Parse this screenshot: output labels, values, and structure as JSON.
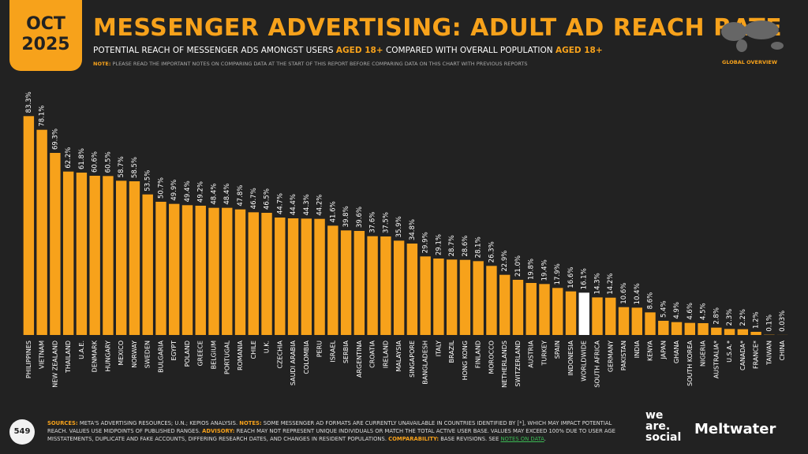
{
  "header": {
    "month": "OCT",
    "year": "2025",
    "title": "MESSENGER ADVERTISING: ADULT AD REACH RATE",
    "subtitle": [
      "POTENTIAL REACH OF MESSENGER ADS AMONGST USERS ",
      "AGED 18+",
      " COMPARED WITH OVERALL POPULATION ",
      "AGED 18+"
    ],
    "note_label": "NOTE:",
    "note": "PLEASE READ THE IMPORTANT NOTES ON COMPARING DATA AT THE START OF THIS REPORT BEFORE COMPARING DATA ON THIS CHART WITH PREVIOUS REPORTS",
    "badge": "GLOBAL OVERVIEW"
  },
  "chart_data": {
    "type": "bar",
    "categories": [
      "PHILIPPINES",
      "VIETNAM",
      "NEW ZEALAND",
      "THAILAND",
      "U.A.E.",
      "DENMARK",
      "HUNGARY",
      "MEXICO",
      "NORWAY",
      "SWEDEN",
      "BULGARIA",
      "EGYPT",
      "POLAND",
      "GREECE",
      "BELGIUM",
      "PORTUGAL",
      "ROMANIA",
      "CHILE",
      "U.K.",
      "CZECHIA",
      "SAUDI ARABIA",
      "COLOMBIA",
      "PERU",
      "ISRAEL",
      "SERBIA",
      "ARGENTINA",
      "CROATIA",
      "IRELAND",
      "MALAYSIA",
      "SINGAPORE",
      "BANGLADESH",
      "ITALY",
      "BRAZIL",
      "HONG KONG",
      "FINLAND",
      "MOROCCO",
      "NETHERLANDS",
      "SWITZERLAND",
      "AUSTRIA",
      "TURKEY",
      "SPAIN",
      "INDONESIA",
      "WORLDWIDE",
      "SOUTH AFRICA",
      "GERMANY",
      "PAKISTAN",
      "INDIA",
      "KENYA",
      "JAPAN",
      "GHANA",
      "SOUTH KOREA",
      "NIGERIA",
      "AUSTRALIA*",
      "U.S.A.*",
      "CANADA*",
      "FRANCE*",
      "TAIWAN",
      "CHINA"
    ],
    "values": [
      83.3,
      78.1,
      69.3,
      62.2,
      61.8,
      60.6,
      60.5,
      58.7,
      58.5,
      53.5,
      50.7,
      49.9,
      49.4,
      49.2,
      48.4,
      48.4,
      47.8,
      46.7,
      46.5,
      44.7,
      44.4,
      44.3,
      44.2,
      41.6,
      39.8,
      39.6,
      37.6,
      37.5,
      35.9,
      34.8,
      29.9,
      29.1,
      28.7,
      28.6,
      28.1,
      26.3,
      22.9,
      21.0,
      19.8,
      19.4,
      17.9,
      16.6,
      16.1,
      14.3,
      14.2,
      10.6,
      10.4,
      8.6,
      5.4,
      4.9,
      4.6,
      4.5,
      2.8,
      2.3,
      2.2,
      1.2,
      0.1,
      0.03
    ],
    "value_labels": [
      "83.3%",
      "78.1%",
      "69.3%",
      "62.2%",
      "61.8%",
      "60.6%",
      "60.5%",
      "58.7%",
      "58.5%",
      "53.5%",
      "50.7%",
      "49.9%",
      "49.4%",
      "49.2%",
      "48.4%",
      "48.4%",
      "47.8%",
      "46.7%",
      "46.5%",
      "44.7%",
      "44.4%",
      "44.3%",
      "44.2%",
      "41.6%",
      "39.8%",
      "39.6%",
      "37.6%",
      "37.5%",
      "35.9%",
      "34.8%",
      "29.9%",
      "29.1%",
      "28.7%",
      "28.6%",
      "28.1%",
      "26.3%",
      "22.9%",
      "21.0%",
      "19.8%",
      "19.4%",
      "17.9%",
      "16.6%",
      "16.1%",
      "14.3%",
      "14.2%",
      "10.6%",
      "10.4%",
      "8.6%",
      "5.4%",
      "4.9%",
      "4.6%",
      "4.5%",
      "2.8%",
      "2.3%",
      "2.2%",
      "1.2%",
      "0.1%",
      "0.03%"
    ],
    "colors": [
      "#f7a21b",
      "#f7a21b",
      "#f7a21b",
      "#f7a21b",
      "#f7a21b",
      "#f7a21b",
      "#f7a21b",
      "#f7a21b",
      "#f7a21b",
      "#f7a21b",
      "#f7a21b",
      "#f7a21b",
      "#f7a21b",
      "#f7a21b",
      "#f7a21b",
      "#f7a21b",
      "#f7a21b",
      "#f7a21b",
      "#f7a21b",
      "#f7a21b",
      "#f7a21b",
      "#f7a21b",
      "#f7a21b",
      "#f7a21b",
      "#f7a21b",
      "#f7a21b",
      "#f7a21b",
      "#f7a21b",
      "#f7a21b",
      "#f7a21b",
      "#f7a21b",
      "#f7a21b",
      "#f7a21b",
      "#f7a21b",
      "#f7a21b",
      "#f7a21b",
      "#f7a21b",
      "#f7a21b",
      "#f7a21b",
      "#f7a21b",
      "#f7a21b",
      "#f7a21b",
      "#ffffff",
      "#f7a21b",
      "#f7a21b",
      "#f7a21b",
      "#f7a21b",
      "#f7a21b",
      "#f7a21b",
      "#f7a21b",
      "#f7a21b",
      "#f7a21b",
      "#f7a21b",
      "#f7a21b",
      "#f7a21b",
      "#f7a21b",
      "#f7a21b",
      "#f7a21b"
    ],
    "ylim": [
      0,
      90
    ]
  },
  "footer": {
    "page": "549",
    "text": [
      "SOURCES:",
      " META'S ADVERTISING RESOURCES; U.N.; KEPIOS ANALYSIS. ",
      "NOTES:",
      " SOME MESSENGER AD FORMATS ARE CURRENTLY UNAVAILABLE IN COUNTRIES IDENTIFIED BY [*], WHICH MAY IMPACT POTENTIAL REACH. VALUES USE MIDPOINTS OF PUBLISHED RANGES. ",
      "ADVISORY:",
      " REACH MAY NOT REPRESENT UNIQUE INDIVIDUALS OR MATCH THE TOTAL ACTIVE USER BASE. VALUES MAY EXCEED 100% DUE TO USER AGE MISSTATEMENTS, DUPLICATE AND FAKE ACCOUNTS, DIFFERING RESEARCH DATES, AND CHANGES IN RESIDENT POPULATIONS. ",
      "COMPARABILITY:",
      " BASE REVISIONS. SEE ",
      "NOTES ON DATA",
      "."
    ],
    "logo1": [
      "we",
      "are.",
      "social"
    ],
    "logo2": "Meltwater"
  }
}
